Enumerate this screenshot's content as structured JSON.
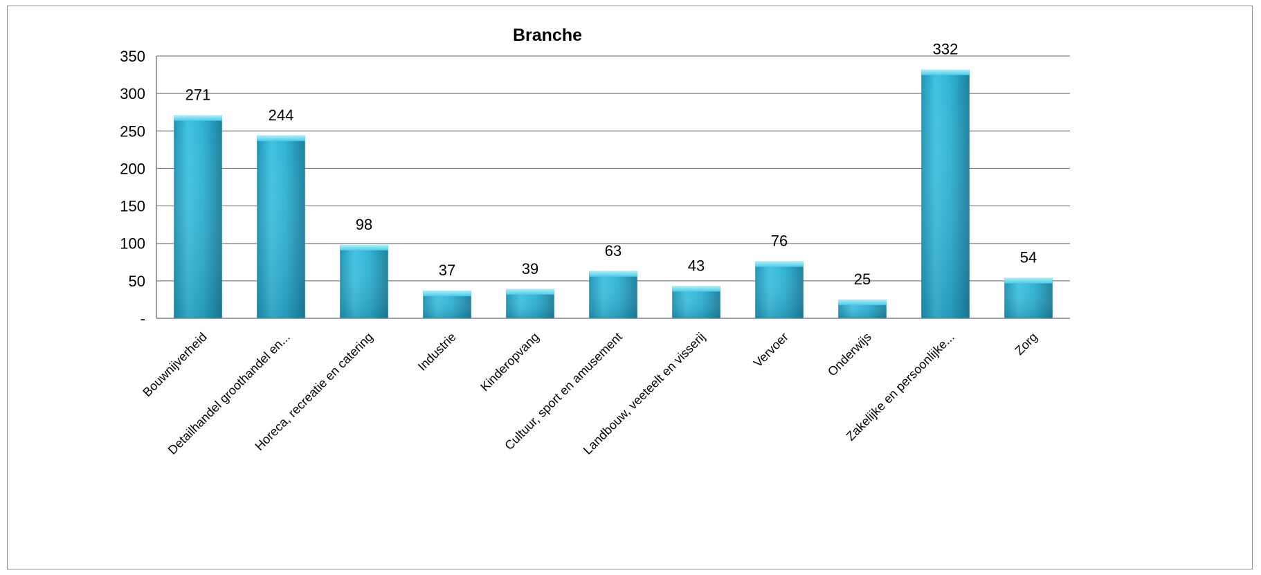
{
  "chart_data": {
    "type": "bar",
    "title": "Branche",
    "xlabel": "",
    "ylabel": "",
    "ylim": [
      0,
      350
    ],
    "yticks": [
      0,
      50,
      100,
      150,
      200,
      250,
      300,
      350
    ],
    "ytick_labels": [
      "-",
      "50",
      "100",
      "150",
      "200",
      "250",
      "300",
      "350"
    ],
    "grid": "horizontal",
    "legend": "none",
    "categories": [
      "Bouwnijverheid",
      "Detailhandel groothandel en...",
      "Horeca, recreatie en catering",
      "Industrie",
      "Kinderopvang",
      "Cultuur, sport en amusement",
      "Landbouw, veeteelt en visserij",
      "Vervoer",
      "Onderwijs",
      "Zakelijke en persoonlijke...",
      "Zorg"
    ],
    "values": [
      271,
      244,
      98,
      37,
      39,
      63,
      43,
      76,
      25,
      332,
      54
    ],
    "colors": {
      "bar": "#2eb4d6",
      "bar_light": "#5fd3ee",
      "bar_dark": "#1e8aa8",
      "bar_top": "#8ee6f7",
      "gridline": "#7f7f7f",
      "axis": "#7f7f7f"
    }
  }
}
